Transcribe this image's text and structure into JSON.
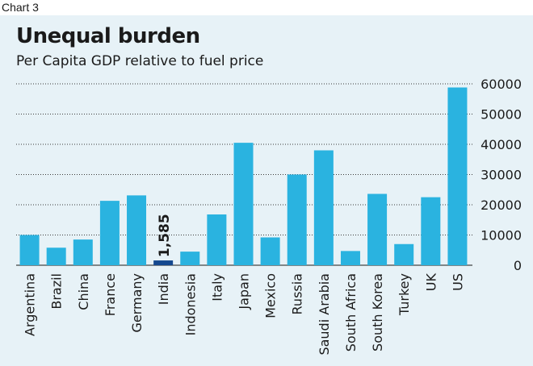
{
  "caption": "Chart 3",
  "chart_data": {
    "type": "bar",
    "title": "Unequal burden",
    "subtitle": "Per Capita GDP relative to fuel price",
    "categories": [
      "Argentina",
      "Brazil",
      "China",
      "France",
      "Germany",
      "India",
      "Indonesia",
      "Italy",
      "Japan",
      "Mexico",
      "Russia",
      "Saudi Arabia",
      "South Africa",
      "South Korea",
      "Turkey",
      "UK",
      "US"
    ],
    "values": [
      10000,
      5800,
      8500,
      21300,
      23100,
      1585,
      4500,
      16800,
      40500,
      9200,
      30000,
      38000,
      4700,
      23600,
      7000,
      22500,
      58800
    ],
    "highlight": {
      "category": "India",
      "label": "1,585",
      "color": "#14488f"
    },
    "bar_color": "#2ab3e0",
    "yticks": [
      "0",
      "10000",
      "20000",
      "30000",
      "40000",
      "50000",
      "60000"
    ],
    "ylim": [
      0,
      60000
    ],
    "grid": true,
    "yaxis_position": "right"
  }
}
